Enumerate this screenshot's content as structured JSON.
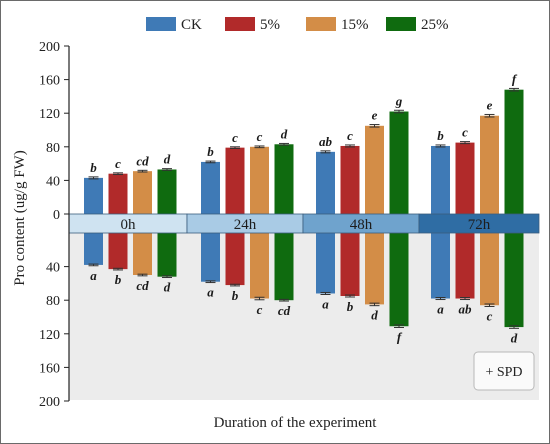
{
  "chart_data": {
    "type": "bar",
    "categories": [
      "0h",
      "24h",
      "48h",
      "72h"
    ],
    "xlabel": "Duration of the experiment",
    "ylabel": "Pro content  (ug/g FW)",
    "y_ticks": [
      "200",
      "160",
      "120",
      "80",
      "40",
      "0",
      "40",
      "80",
      "120",
      "160",
      "200"
    ],
    "ylim_upper": [
      0,
      200
    ],
    "ylim_lower": [
      0,
      200
    ],
    "legend_position": "top",
    "annotation": "+ SPD",
    "series": [
      {
        "name": "CK",
        "color": "#3f7ab6",
        "upper": [
          43,
          62,
          74,
          81
        ],
        "upper_err": [
          1.2,
          1.0,
          1.2,
          1.2
        ],
        "upper_letters": [
          "b",
          "b",
          "ab",
          "b"
        ],
        "lower": [
          38,
          58,
          72,
          78
        ],
        "lower_err": [
          1.0,
          1.0,
          1.2,
          1.2
        ],
        "lower_letters": [
          "a",
          "a",
          "a",
          "a"
        ]
      },
      {
        "name": "5%",
        "color": "#b12a2a",
        "upper": [
          48,
          79,
          81,
          85
        ],
        "upper_err": [
          1.0,
          1.0,
          1.2,
          1.2
        ],
        "upper_letters": [
          "c",
          "c",
          "c",
          "c"
        ],
        "lower": [
          43,
          62,
          75,
          78
        ],
        "lower_err": [
          1.0,
          1.0,
          1.2,
          1.2
        ],
        "lower_letters": [
          "b",
          "b",
          "b",
          "ab"
        ]
      },
      {
        "name": "15%",
        "color": "#d38d47",
        "upper": [
          51,
          80,
          105,
          117
        ],
        "upper_err": [
          1.0,
          1.0,
          1.5,
          1.5
        ],
        "upper_letters": [
          "cd",
          "c",
          "e",
          "e"
        ],
        "lower": [
          50,
          78,
          85,
          86
        ],
        "lower_err": [
          1.0,
          1.5,
          1.5,
          1.5
        ],
        "lower_letters": [
          "cd",
          "c",
          "d",
          "c"
        ]
      },
      {
        "name": "25%",
        "color": "#0f6b0f",
        "upper": [
          53,
          83,
          122,
          148
        ],
        "upper_err": [
          1.0,
          1.0,
          1.5,
          1.5
        ],
        "upper_letters": [
          "d",
          "d",
          "g",
          "f"
        ],
        "lower": [
          52,
          80,
          111,
          112
        ],
        "lower_err": [
          1.0,
          1.0,
          1.5,
          1.5
        ],
        "lower_letters": [
          "d",
          "cd",
          "f",
          "d"
        ]
      }
    ],
    "band_colors": [
      "#cfe3f1",
      "#a9cbe5",
      "#6fa3cd",
      "#2f6da4"
    ],
    "band_text_color": "#1d1d1d",
    "lower_panel_color": "#ececec",
    "error_bar_color": "#333333"
  }
}
